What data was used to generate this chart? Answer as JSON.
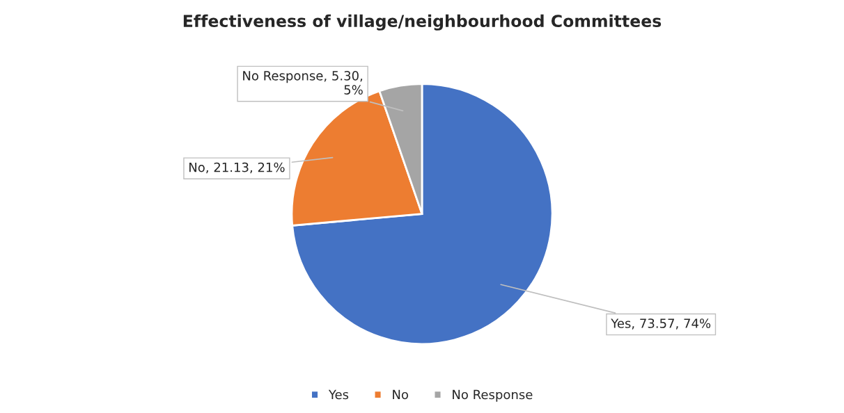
{
  "chart_data": {
    "type": "pie",
    "title": "Effectiveness of village/neighbourhood Committees",
    "categories": [
      "Yes",
      "No",
      "No Response"
    ],
    "values": [
      73.57,
      21.13,
      5.3
    ],
    "colors": [
      "#4472c4",
      "#ed7d31",
      "#a5a5a5"
    ],
    "value_labels": [
      "Yes, 73.57, 74%",
      "No, 21.13, 21%",
      "No Response, 5.30,\n5%"
    ],
    "legend": "bottom"
  }
}
